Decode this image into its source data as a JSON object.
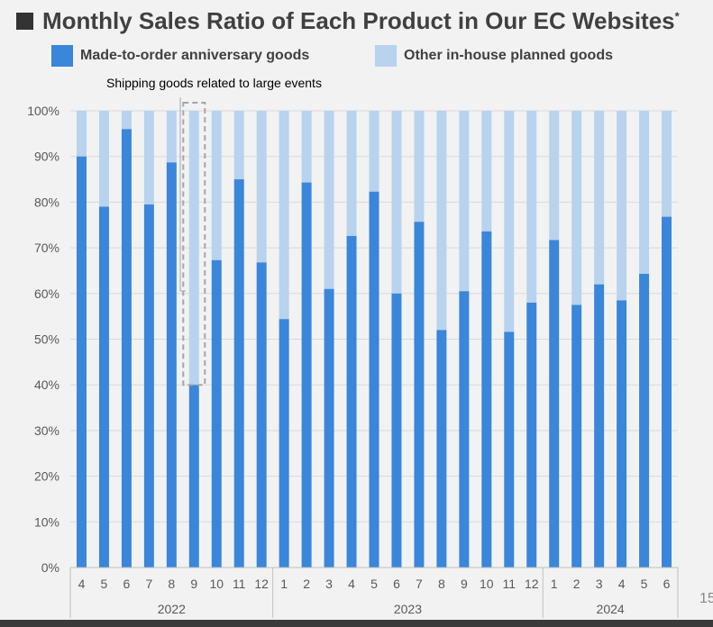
{
  "title": "Monthly Sales Ratio of Each Product in Our EC Websites",
  "title_mark": "*",
  "page_number": "15",
  "colors": {
    "made_to_order": "#3a86da",
    "other": "#b8d3ee",
    "grid": "#d9d9d9",
    "axis": "#bfbfbf"
  },
  "chart_data": {
    "type": "bar",
    "stacked": true,
    "percent": true,
    "ylim": [
      0,
      100
    ],
    "y_ticks": [
      "0%",
      "10%",
      "20%",
      "30%",
      "40%",
      "50%",
      "60%",
      "70%",
      "80%",
      "90%",
      "100%"
    ],
    "categories": [
      "4",
      "5",
      "6",
      "7",
      "8",
      "9",
      "10",
      "11",
      "12",
      "1",
      "2",
      "3",
      "4",
      "5",
      "6",
      "7",
      "8",
      "9",
      "10",
      "11",
      "12",
      "1",
      "2",
      "3",
      "4",
      "5",
      "6"
    ],
    "year_groups": [
      {
        "label": "2022",
        "start": 0,
        "end": 8
      },
      {
        "label": "2023",
        "start": 9,
        "end": 20
      },
      {
        "label": "2024",
        "start": 21,
        "end": 26
      }
    ],
    "series": [
      {
        "name": "Made-to-order anniversary goods",
        "values": [
          90,
          79,
          96,
          79.5,
          88.7,
          40,
          67.3,
          85,
          66.8,
          54.4,
          84.3,
          61,
          72.6,
          82.3,
          60,
          75.7,
          52,
          60.5,
          73.6,
          51.6,
          58,
          71.7,
          57.5,
          62,
          58.5,
          64.3,
          76.8
        ]
      },
      {
        "name": "Other in-house planned goods",
        "values": [
          10,
          21,
          4,
          20.5,
          11.3,
          60,
          32.7,
          15,
          33.2,
          45.6,
          15.7,
          39,
          27.4,
          17.7,
          40,
          24.3,
          48,
          39.5,
          26.4,
          48.4,
          42,
          28.3,
          42.5,
          38,
          41.5,
          35.7,
          23.2
        ]
      }
    ],
    "annotation": {
      "text": "Shipping goods related to large events",
      "category_index": 5
    },
    "legend_position": "top"
  }
}
